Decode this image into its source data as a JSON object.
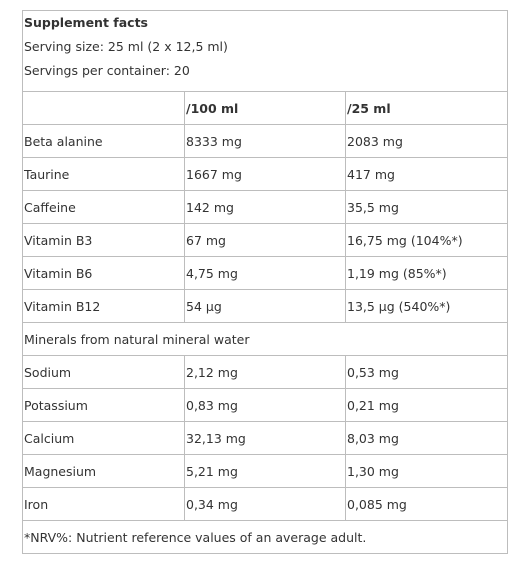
{
  "title": "Supplement facts",
  "serving_size": "Serving size: 25 ml (2 x 12,5 ml)",
  "servings": "Servings per container: 20",
  "header": {
    "per_100": "/100 ml",
    "per_25": "/25 ml"
  },
  "rows": [
    [
      "Beta alanine",
      "8333 mg",
      "2083 mg"
    ],
    [
      "Taurine",
      "1667 mg",
      "417 mg"
    ],
    [
      "Caffeine",
      "142 mg",
      "35,5 mg"
    ],
    [
      "Vitamin B3",
      "67 mg",
      "16,75 mg (104%*)"
    ],
    [
      "Vitamin B6",
      "4,75 mg",
      "1,19 mg (85%*)"
    ],
    [
      "Vitamin B12",
      "54 µg",
      "13,5 µg (540%*)"
    ]
  ],
  "section": "Minerals from natural mineral water",
  "minerals": [
    [
      "Sodium",
      "2,12 mg",
      "0,53 mg"
    ],
    [
      "Potassium",
      "0,83 mg",
      "0,21 mg"
    ],
    [
      "Calcium",
      "32,13 mg",
      "8,03 mg"
    ],
    [
      "Magnesium",
      "5,21 mg",
      "1,30 mg"
    ],
    [
      "Iron",
      "0,34 mg",
      "0,085 mg"
    ]
  ],
  "footnote": "*NRV%: Nutrient reference values of an average adult."
}
